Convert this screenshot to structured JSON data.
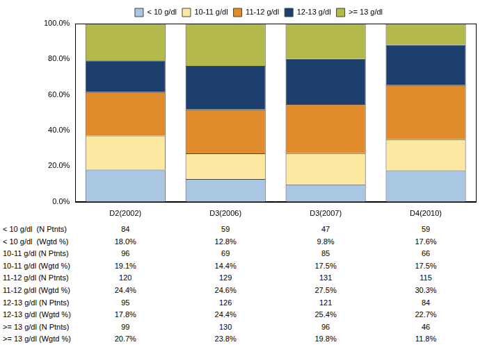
{
  "chart_data": {
    "type": "bar",
    "stacked": true,
    "grid": false,
    "legend": "top",
    "categories": [
      "D2(2002)",
      "D3(2006)",
      "D3(2007)",
      "D4(2010)"
    ],
    "ylim": [
      0,
      100
    ],
    "yticks": [
      {
        "value": 0,
        "label": "0.0%"
      },
      {
        "value": 20,
        "label": "20.0%"
      },
      {
        "value": 40,
        "label": "40.0%"
      },
      {
        "value": 60,
        "label": "60.0%"
      },
      {
        "value": 80,
        "label": "80.0%"
      },
      {
        "value": 100,
        "label": "100.0%"
      }
    ],
    "series": [
      {
        "name": "< 10 g/dl",
        "color": "#a9c6e3",
        "values": [
          18.0,
          12.8,
          9.8,
          17.6
        ],
        "value_labels": [
          "18.0%",
          "12.8%",
          "9.8%",
          "17.6%"
        ],
        "n_label": "< 10 g/dl  (N Ptnts)",
        "n": [
          84,
          59,
          47,
          59
        ],
        "pct_label": "< 10 g/dl  (Wgtd %)"
      },
      {
        "name": "10-11 g/dl",
        "color": "#fbe9a1",
        "values": [
          19.1,
          14.4,
          17.5,
          17.5
        ],
        "value_labels": [
          "19.1%",
          "14.4%",
          "17.5%",
          "17.5%"
        ],
        "n_label": "10-11 g/dl (N Ptnts)",
        "n": [
          96,
          69,
          85,
          66
        ],
        "pct_label": "10-11 g/dl (Wgtd %)"
      },
      {
        "name": "11-12 g/dl",
        "color": "#e08c2c",
        "values": [
          24.4,
          24.6,
          27.5,
          30.3
        ],
        "value_labels": [
          "24.4%",
          "24.6%",
          "27.5%",
          "30.3%"
        ],
        "n_label": "11-12 g/dl (N Ptnts)",
        "n": [
          120,
          129,
          131,
          115
        ],
        "pct_label": "11-12 g/dl (Wgtd %)"
      },
      {
        "name": "12-13 g/dl",
        "color": "#1c3f6e",
        "values": [
          17.8,
          24.4,
          25.4,
          22.7
        ],
        "value_labels": [
          "17.8%",
          "24.4%",
          "25.4%",
          "22.7%"
        ],
        "n_label": "12-13 g/dl (N Ptnts)",
        "n": [
          95,
          126,
          121,
          84
        ],
        "pct_label": "12-13 g/dl (Wgtd %)"
      },
      {
        "name": ">= 13 g/dl",
        "color": "#b3b94a",
        "values": [
          20.7,
          23.8,
          19.8,
          11.8
        ],
        "value_labels": [
          "20.7%",
          "23.8%",
          "19.8%",
          "11.8%"
        ],
        "n_label": ">= 13 g/dl (N Ptnts)",
        "n": [
          99,
          130,
          96,
          46
        ],
        "pct_label": ">= 13 g/dl (Wgtd %)"
      }
    ]
  }
}
